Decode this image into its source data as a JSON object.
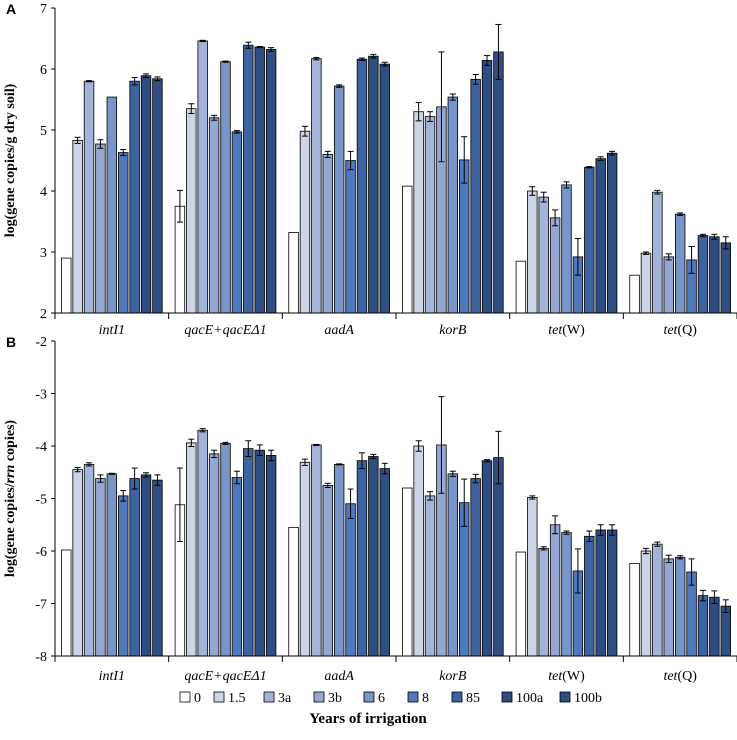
{
  "chart_data": [
    {
      "type": "bar",
      "panel_label": "A",
      "ylabel": "log(gene copies/g dry soil)",
      "ylim": [
        2,
        7
      ],
      "yticks": [
        "2",
        "3",
        "4",
        "5",
        "6",
        "7"
      ],
      "grid": false,
      "categories": [
        {
          "parts": [
            {
              "text": "intI1",
              "italic": true
            }
          ]
        },
        {
          "parts": [
            {
              "text": "qacE+qacEΔ1",
              "italic": true
            }
          ]
        },
        {
          "parts": [
            {
              "text": "aadA",
              "italic": true
            }
          ]
        },
        {
          "parts": [
            {
              "text": "korB",
              "italic": true
            }
          ]
        },
        {
          "parts": [
            {
              "text": "tet",
              "italic": true
            },
            {
              "text": "(W)",
              "italic": false
            }
          ]
        },
        {
          "parts": [
            {
              "text": "tet",
              "italic": true
            },
            {
              "text": "(Q)",
              "italic": false
            }
          ]
        }
      ],
      "series": [
        {
          "name": "0",
          "values": [
            2.9,
            3.75,
            3.32,
            4.08,
            2.85,
            2.62
          ],
          "errors": [
            0,
            0.26,
            0,
            0,
            0,
            0
          ]
        },
        {
          "name": "1.5",
          "values": [
            4.83,
            5.35,
            4.98,
            5.3,
            4.0,
            2.98
          ],
          "errors": [
            0.05,
            0.08,
            0.08,
            0.15,
            0.07,
            0.02
          ]
        },
        {
          "name": "3a",
          "values": [
            5.8,
            6.46,
            6.17,
            5.22,
            3.9,
            3.98
          ],
          "errors": [
            0.01,
            0.01,
            0.02,
            0.08,
            0.08,
            0.03
          ]
        },
        {
          "name": "3b",
          "values": [
            4.77,
            5.2,
            4.6,
            5.38,
            3.56,
            2.92
          ],
          "errors": [
            0.07,
            0.04,
            0.05,
            0.9,
            0.13,
            0.05
          ]
        },
        {
          "name": "6",
          "values": [
            5.54,
            6.12,
            5.72,
            5.54,
            4.1,
            3.62
          ],
          "errors": [
            0,
            0.01,
            0.02,
            0.05,
            0.05,
            0.02
          ]
        },
        {
          "name": "8",
          "values": [
            4.63,
            4.97,
            4.5,
            4.51,
            2.92,
            2.87
          ],
          "errors": [
            0.05,
            0.02,
            0.15,
            0.38,
            0.3,
            0.22
          ]
        },
        {
          "name": "85",
          "values": [
            5.8,
            6.39,
            6.16,
            5.83,
            4.39,
            3.27
          ],
          "errors": [
            0.06,
            0.05,
            0.02,
            0.08,
            0.01,
            0.02
          ]
        },
        {
          "name": "100a",
          "values": [
            5.89,
            6.36,
            6.21,
            6.14,
            4.53,
            3.25
          ],
          "errors": [
            0.03,
            0.01,
            0.03,
            0.08,
            0.03,
            0.04
          ]
        },
        {
          "name": "100b",
          "values": [
            5.84,
            6.32,
            6.08,
            6.28,
            4.62,
            3.15
          ],
          "errors": [
            0.03,
            0.03,
            0.03,
            0.45,
            0.03,
            0.1
          ]
        }
      ]
    },
    {
      "type": "bar",
      "panel_label": "B",
      "ylabel_parts": [
        {
          "text": "log(gene copies/",
          "italic": false
        },
        {
          "text": "rrn",
          "italic": true
        },
        {
          "text": " copies)",
          "italic": false
        }
      ],
      "ylim": [
        -8,
        -2
      ],
      "yticks": [
        "-8",
        "-7",
        "-6",
        "-5",
        "-4",
        "-3",
        "-2"
      ],
      "grid": false,
      "categories": [
        {
          "parts": [
            {
              "text": "intI1",
              "italic": true
            }
          ]
        },
        {
          "parts": [
            {
              "text": "qacE+qacEΔ1",
              "italic": true
            }
          ]
        },
        {
          "parts": [
            {
              "text": "aadA",
              "italic": true
            }
          ]
        },
        {
          "parts": [
            {
              "text": "korB",
              "italic": true
            }
          ]
        },
        {
          "parts": [
            {
              "text": "tet",
              "italic": true
            },
            {
              "text": "(W)",
              "italic": false
            }
          ]
        },
        {
          "parts": [
            {
              "text": "tet",
              "italic": true
            },
            {
              "text": "(Q)",
              "italic": false
            }
          ]
        }
      ],
      "series": [
        {
          "name": "0",
          "values": [
            -5.98,
            -5.12,
            -5.55,
            -4.8,
            -6.02,
            -6.24
          ],
          "errors": [
            0,
            0.7,
            0,
            0,
            0,
            0
          ]
        },
        {
          "name": "1.5",
          "values": [
            -4.45,
            -3.94,
            -4.31,
            -4.0,
            -4.98,
            -6.0
          ],
          "errors": [
            0.04,
            0.07,
            0.06,
            0.1,
            0.03,
            0.05
          ]
        },
        {
          "name": "3a",
          "values": [
            -4.35,
            -3.7,
            -3.98,
            -4.95,
            -5.95,
            -5.87
          ],
          "errors": [
            0.03,
            0.03,
            0.01,
            0.08,
            0.03,
            0.04
          ]
        },
        {
          "name": "3b",
          "values": [
            -4.62,
            -4.15,
            -4.75,
            -3.98,
            -5.5,
            -6.15
          ],
          "errors": [
            0.07,
            0.07,
            0.04,
            0.92,
            0.17,
            0.07
          ]
        },
        {
          "name": "6",
          "values": [
            -4.53,
            -3.95,
            -4.35,
            -4.53,
            -5.65,
            -6.12
          ],
          "errors": [
            0.01,
            0.02,
            0.01,
            0.05,
            0.03,
            0.03
          ]
        },
        {
          "name": "8",
          "values": [
            -4.95,
            -4.6,
            -5.1,
            -5.08,
            -6.38,
            -6.4
          ],
          "errors": [
            0.1,
            0.12,
            0.28,
            0.45,
            0.42,
            0.25
          ]
        },
        {
          "name": "85",
          "values": [
            -4.62,
            -4.05,
            -4.28,
            -4.62,
            -5.72,
            -6.85
          ],
          "errors": [
            0.2,
            0.15,
            0.15,
            0.08,
            0.1,
            0.1
          ]
        },
        {
          "name": "100a",
          "values": [
            -4.55,
            -4.08,
            -4.2,
            -4.28,
            -5.6,
            -6.88
          ],
          "errors": [
            0.04,
            0.1,
            0.04,
            0.02,
            0.1,
            0.12
          ]
        },
        {
          "name": "100b",
          "values": [
            -4.65,
            -4.18,
            -4.43,
            -4.22,
            -5.6,
            -7.05
          ],
          "errors": [
            0.1,
            0.1,
            0.1,
            0.5,
            0.1,
            0.12
          ]
        }
      ]
    }
  ],
  "colors": [
    "#ffffff",
    "#ccd4e6",
    "#a3b4d8",
    "#95a6d0",
    "#7894c8",
    "#4f78bd",
    "#3e63a1",
    "#2e4e82",
    "#2f4e82"
  ],
  "legend": {
    "title": "Years of irrigation",
    "placement": "bottom-center"
  }
}
